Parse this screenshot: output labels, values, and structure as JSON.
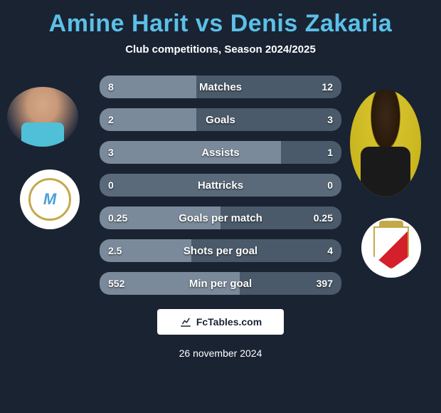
{
  "title": "Amine Harit vs Denis Zakaria",
  "subtitle": "Club competitions, Season 2024/2025",
  "date": "26 november 2024",
  "branding": {
    "label": "FcTables.com"
  },
  "colors": {
    "background": "#1a2332",
    "title": "#5bc0e8",
    "text": "#ffffff",
    "bar_left": "#7a8a9a",
    "bar_right": "#4a5a6a",
    "bar_neutral": "#5a6a7a",
    "badge_bg": "#ffffff"
  },
  "players": {
    "p1": {
      "name": "Amine Harit",
      "club": "Marseille"
    },
    "p2": {
      "name": "Denis Zakaria",
      "club": "Monaco"
    }
  },
  "stats": [
    {
      "label": "Matches",
      "v1": "8",
      "v2": "12",
      "left_pct": 40,
      "right_pct": 60
    },
    {
      "label": "Goals",
      "v1": "2",
      "v2": "3",
      "left_pct": 40,
      "right_pct": 60
    },
    {
      "label": "Assists",
      "v1": "3",
      "v2": "1",
      "left_pct": 75,
      "right_pct": 25
    },
    {
      "label": "Hattricks",
      "v1": "0",
      "v2": "0",
      "left_pct": 0,
      "right_pct": 0
    },
    {
      "label": "Goals per match",
      "v1": "0.25",
      "v2": "0.25",
      "left_pct": 50,
      "right_pct": 50
    },
    {
      "label": "Shots per goal",
      "v1": "2.5",
      "v2": "4",
      "left_pct": 38,
      "right_pct": 62
    },
    {
      "label": "Min per goal",
      "v1": "552",
      "v2": "397",
      "left_pct": 58,
      "right_pct": 42
    }
  ]
}
